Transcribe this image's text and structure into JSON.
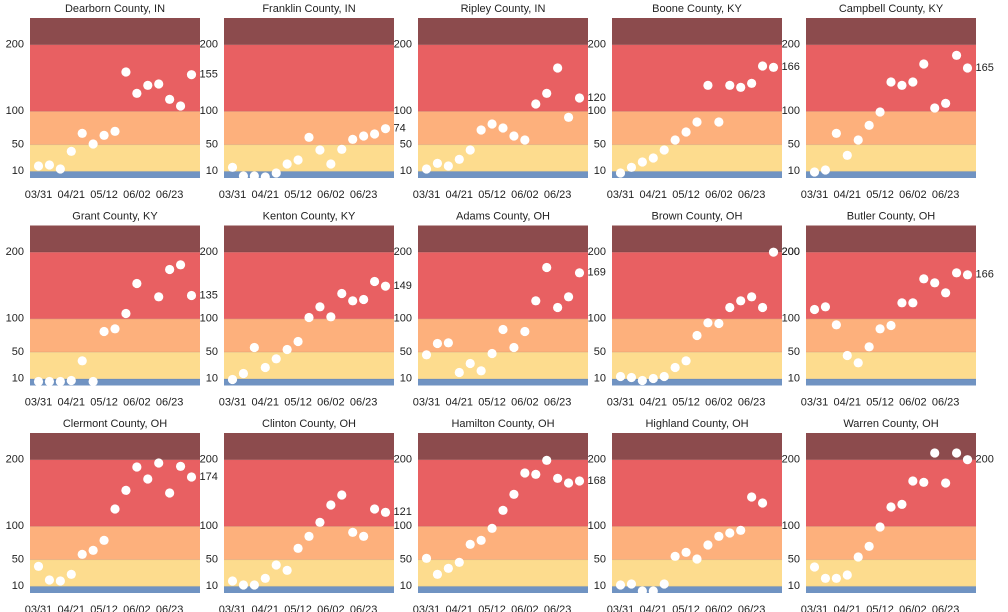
{
  "chart_data": {
    "type": "scatter",
    "categories": [
      "03/31",
      null,
      null,
      "04/21",
      null,
      null,
      "05/12",
      null,
      null,
      "06/02",
      null,
      null,
      "06/23",
      null,
      null
    ],
    "ylim": [
      0,
      240
    ],
    "yticks": [
      10,
      50,
      100,
      200
    ],
    "band_colors": [
      "#7093c2",
      "#fddc8e",
      "#fdb07c",
      "#e86062",
      "#8c4b4d"
    ],
    "point_color": "#ffffff",
    "panels": [
      {
        "title": "Dearborn County, IN",
        "values": [
          18,
          19.5,
          13.5,
          40,
          67,
          51,
          64,
          70,
          159,
          127,
          139,
          141,
          118,
          108,
          155
        ]
      },
      {
        "title": "Franklin County, IN",
        "values": [
          16,
          3,
          3,
          1.5,
          7.5,
          21,
          27,
          61,
          42,
          21,
          43,
          58,
          63,
          66,
          74
        ]
      },
      {
        "title": "Ripley County, IN",
        "values": [
          13.5,
          22,
          18,
          28,
          42,
          72,
          81,
          75,
          63,
          57,
          111,
          127,
          165,
          91,
          120
        ]
      },
      {
        "title": "Boone County, KY",
        "values": [
          7.5,
          16,
          24,
          30,
          42,
          57,
          69,
          84,
          139,
          84,
          139,
          136,
          142,
          168,
          166
        ]
      },
      {
        "title": "Campbell County, KY",
        "values": [
          9,
          12,
          67,
          34,
          57,
          79,
          99,
          144,
          139,
          144,
          171,
          105,
          112,
          184,
          165
        ]
      },
      {
        "title": "Grant County, KY",
        "values": [
          6,
          6,
          6,
          7.5,
          37,
          6,
          81,
          85,
          108,
          153,
          null,
          133,
          174,
          181,
          135
        ]
      },
      {
        "title": "Kenton County, KY",
        "values": [
          9,
          18,
          57,
          27,
          40,
          54,
          66,
          102,
          118,
          103,
          138,
          127,
          129,
          156,
          149
        ]
      },
      {
        "title": "Adams County, OH",
        "values": [
          46,
          63,
          64,
          19.5,
          33,
          22,
          48,
          84,
          57,
          81,
          127,
          177,
          117,
          133,
          169
        ]
      },
      {
        "title": "Brown County, OH",
        "values": [
          13.5,
          12,
          7.5,
          10.5,
          13.5,
          27,
          37,
          75,
          94,
          93,
          117,
          127,
          133,
          117,
          200
        ]
      },
      {
        "title": "Butler County, OH",
        "values": [
          114,
          118,
          91,
          45,
          34,
          58,
          85,
          90,
          124,
          124,
          160,
          154,
          139,
          169,
          166
        ]
      },
      {
        "title": "Clermont County, OH",
        "values": [
          40,
          19.5,
          18,
          28,
          58,
          64,
          79,
          126,
          154,
          189,
          171,
          195,
          150,
          190,
          174
        ]
      },
      {
        "title": "Clinton County, OH",
        "values": [
          18,
          12,
          12,
          22,
          42,
          34,
          67,
          85,
          106,
          132,
          147,
          91,
          85,
          126,
          121
        ]
      },
      {
        "title": "Hamilton County, OH",
        "values": [
          52,
          28,
          37,
          46,
          73,
          79,
          97,
          124,
          148,
          180,
          178,
          199,
          172,
          165,
          168
        ]
      },
      {
        "title": "Highland County, OH",
        "values": [
          12,
          13.5,
          3,
          3,
          13.5,
          55,
          61,
          51,
          72,
          85,
          90,
          94,
          144,
          135,
          null
        ]
      },
      {
        "title": "Warren County, OH",
        "values": [
          39,
          22,
          22,
          27,
          54,
          70,
          99,
          129,
          133,
          168,
          166,
          210,
          165,
          210,
          200
        ]
      }
    ]
  }
}
